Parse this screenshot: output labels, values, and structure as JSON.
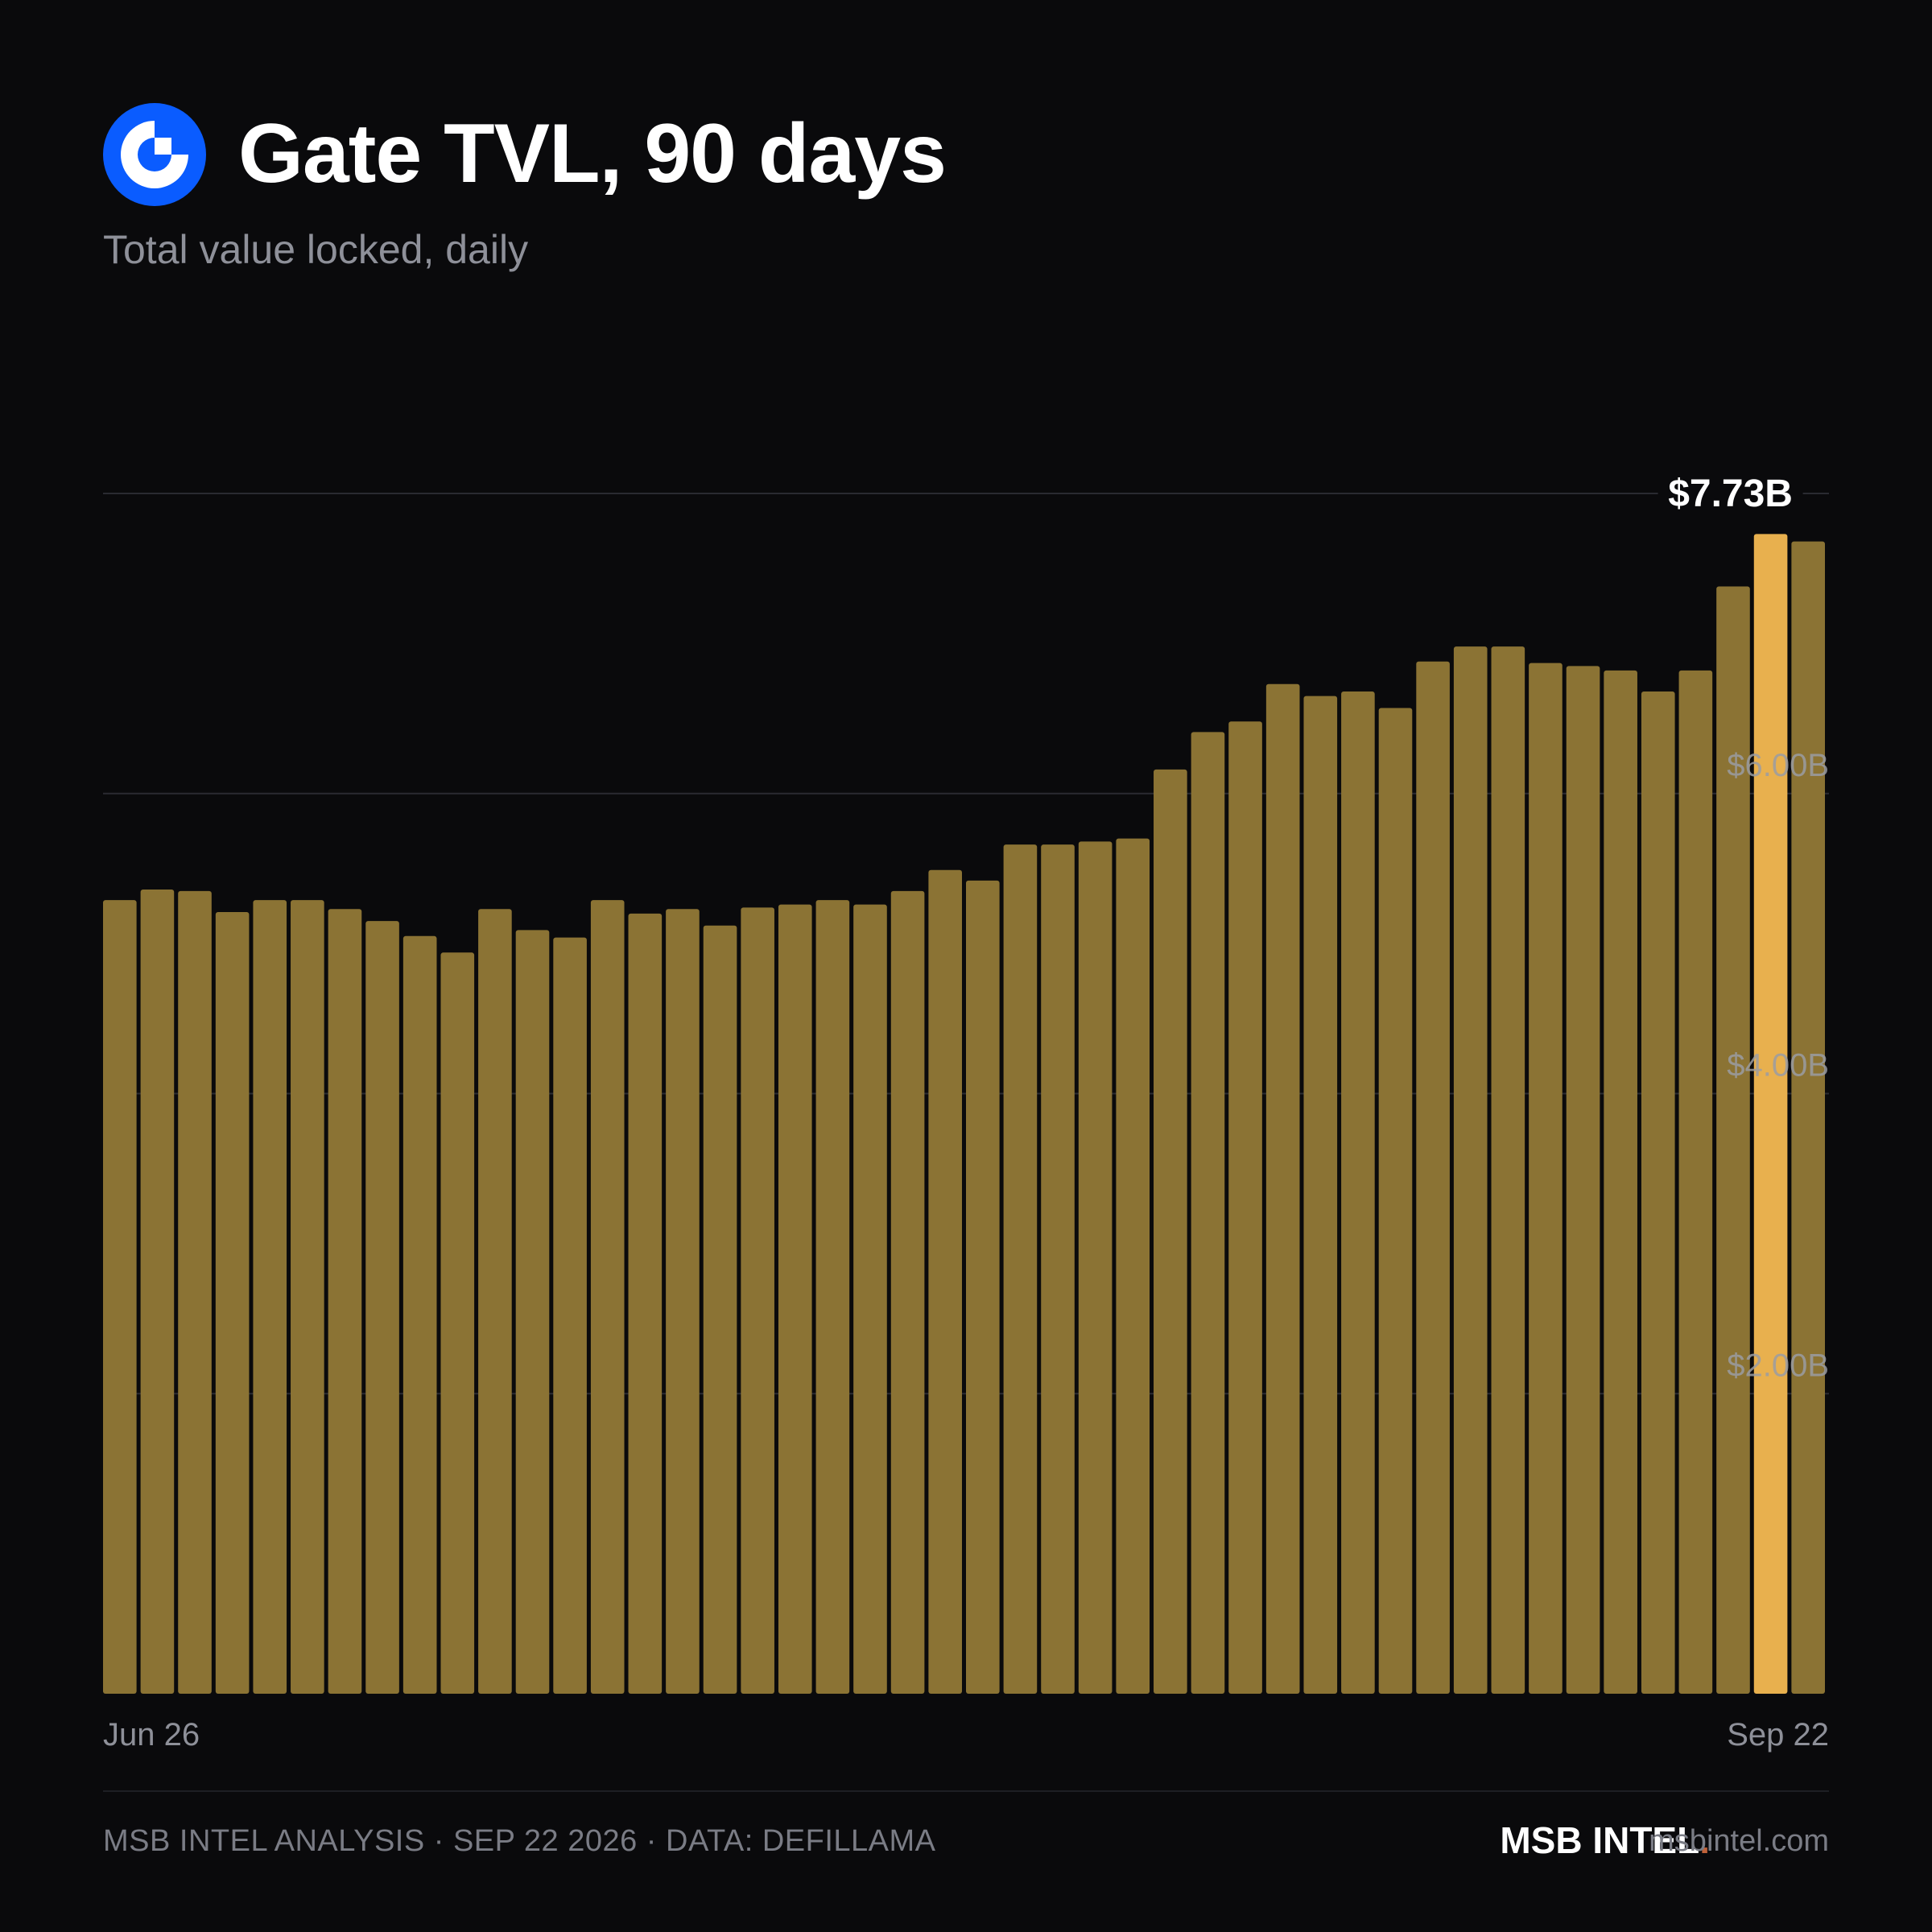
{
  "header": {
    "title": "Gate TVL, 90 days",
    "subtitle": "Total value locked, daily",
    "logo_icon": "gate-logo-icon",
    "logo_color": "#0a5cff"
  },
  "chart_data": {
    "type": "bar",
    "title": "Gate TVL, 90 days",
    "subtitle": "Total value locked, daily",
    "unit": "USD billions",
    "x_start_label": "Jun 26",
    "x_end_label": "Sep 22",
    "ylim": [
      0,
      8
    ],
    "y_ticks": [
      {
        "value": 2,
        "label": "$2.00B"
      },
      {
        "value": 4,
        "label": "$4.00B"
      },
      {
        "value": 6,
        "label": "$6.00B"
      },
      {
        "value": 8,
        "label": ""
      }
    ],
    "grid": true,
    "values": [
      5.29,
      5.36,
      5.35,
      5.21,
      5.29,
      5.29,
      5.23,
      5.15,
      5.05,
      4.94,
      5.23,
      5.09,
      5.04,
      5.29,
      5.2,
      5.23,
      5.12,
      5.24,
      5.26,
      5.29,
      5.26,
      5.35,
      5.49,
      5.42,
      5.66,
      5.66,
      5.68,
      5.7,
      6.16,
      6.41,
      6.48,
      6.73,
      6.65,
      6.68,
      6.57,
      6.88,
      6.98,
      6.98,
      6.87,
      6.85,
      6.82,
      6.68,
      6.82,
      7.38,
      7.73,
      7.68
    ],
    "highlight_index": 44,
    "highlight_label": "$7.73B",
    "bar_color": "#8b7334",
    "highlight_color": "#e8b04e"
  },
  "footer": {
    "note": "MSB INTEL ANALYSIS · SEP 22 2026 · DATA: DEFILLAMA",
    "brand": "MSB INTEL",
    "brand_dot": ".",
    "brand_dot_color": "#c0623a",
    "site": "msbintel.com"
  }
}
